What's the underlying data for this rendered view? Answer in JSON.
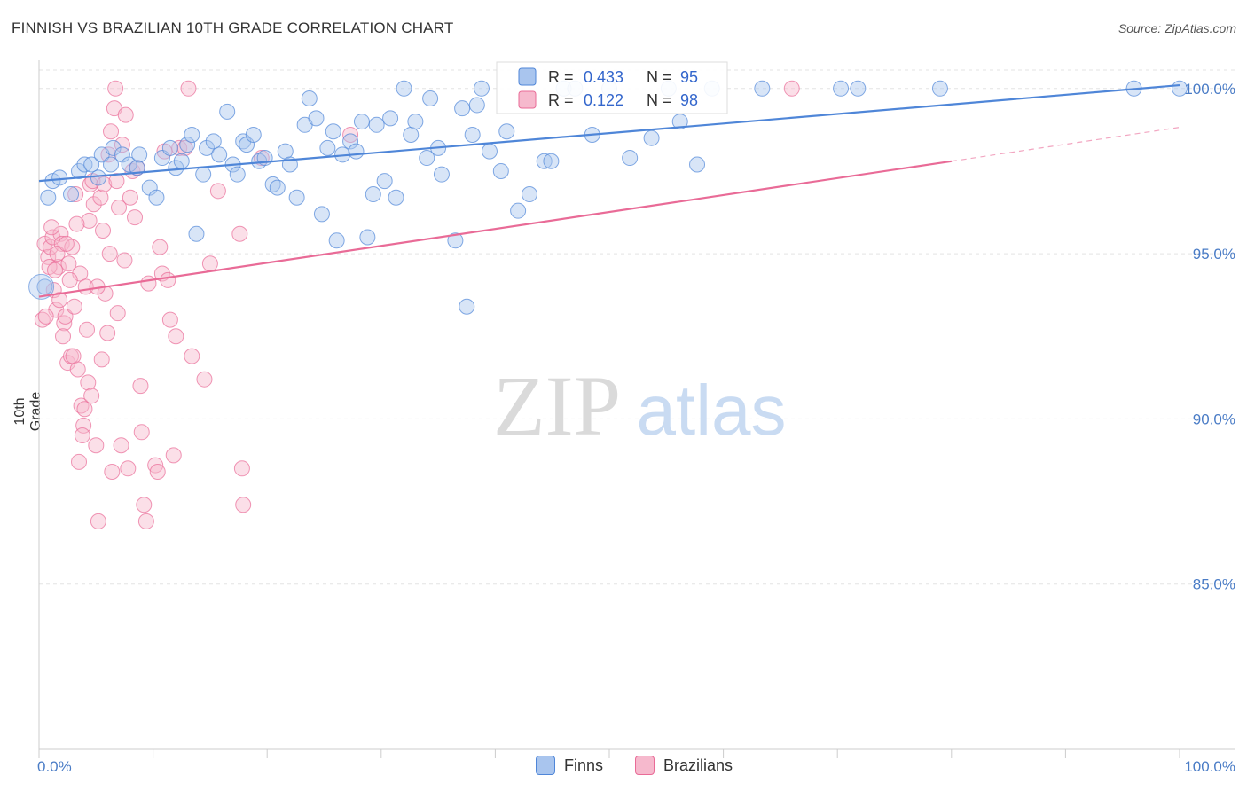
{
  "chart_data": {
    "type": "scatter",
    "title": "FINNISH VS BRAZILIAN 10TH GRADE CORRELATION CHART",
    "source": "Source: ZipAtlas.com",
    "ylabel": "10th Grade",
    "xlabel": "",
    "xlim": [
      0,
      100
    ],
    "ylim": [
      80.0,
      100.8
    ],
    "x_tick_labels": [
      "0.0%",
      "100.0%"
    ],
    "y_ticks": [
      85.0,
      90.0,
      95.0,
      100.0
    ],
    "y_tick_labels": [
      "85.0%",
      "90.0%",
      "95.0%",
      "100.0%"
    ],
    "watermark": {
      "part1": "ZIP",
      "part2": "atlas"
    },
    "legend": [
      {
        "name": "Finns",
        "r_label": "R =",
        "r_value": "0.433",
        "n_label": "N =",
        "n_value": "95"
      },
      {
        "name": "Brazilians",
        "r_label": "R =",
        "r_value": "0.122",
        "n_label": "N =",
        "n_value": "98"
      }
    ],
    "series": [
      {
        "name": "Finns",
        "color": "#4f86d8",
        "fill": "#a9c5ee",
        "trend": {
          "x1": 0,
          "y1": 97.2,
          "x2": 100,
          "y2": 100.1,
          "dashed_to": 100
        },
        "points": [
          [
            0.5,
            94.0
          ],
          [
            0.8,
            96.7
          ],
          [
            1.2,
            97.2
          ],
          [
            1.8,
            97.3
          ],
          [
            2.8,
            96.8
          ],
          [
            3.5,
            97.5
          ],
          [
            4.0,
            97.7
          ],
          [
            4.6,
            97.7
          ],
          [
            5.2,
            97.3
          ],
          [
            5.5,
            98.0
          ],
          [
            6.3,
            97.7
          ],
          [
            6.5,
            98.2
          ],
          [
            7.3,
            98.0
          ],
          [
            7.9,
            97.7
          ],
          [
            8.6,
            97.6
          ],
          [
            8.8,
            98.0
          ],
          [
            9.7,
            97.0
          ],
          [
            10.3,
            96.7
          ],
          [
            10.8,
            97.9
          ],
          [
            11.5,
            98.2
          ],
          [
            12.0,
            97.6
          ],
          [
            12.5,
            97.8
          ],
          [
            13.0,
            98.3
          ],
          [
            13.4,
            98.6
          ],
          [
            13.8,
            95.6
          ],
          [
            14.4,
            97.4
          ],
          [
            14.7,
            98.2
          ],
          [
            15.3,
            98.4
          ],
          [
            15.8,
            98.0
          ],
          [
            16.5,
            99.3
          ],
          [
            17.0,
            97.7
          ],
          [
            17.4,
            97.4
          ],
          [
            17.9,
            98.4
          ],
          [
            18.2,
            98.3
          ],
          [
            18.8,
            98.6
          ],
          [
            19.3,
            97.8
          ],
          [
            19.8,
            97.9
          ],
          [
            20.5,
            97.1
          ],
          [
            20.9,
            97.0
          ],
          [
            21.6,
            98.1
          ],
          [
            22.0,
            97.7
          ],
          [
            22.6,
            96.7
          ],
          [
            23.3,
            98.9
          ],
          [
            23.7,
            99.7
          ],
          [
            24.3,
            99.1
          ],
          [
            24.8,
            96.2
          ],
          [
            25.3,
            98.2
          ],
          [
            25.8,
            98.7
          ],
          [
            26.1,
            95.4
          ],
          [
            26.6,
            98.0
          ],
          [
            27.3,
            98.4
          ],
          [
            27.8,
            98.1
          ],
          [
            28.3,
            99.0
          ],
          [
            28.8,
            95.5
          ],
          [
            29.3,
            96.8
          ],
          [
            29.6,
            98.9
          ],
          [
            30.3,
            97.2
          ],
          [
            30.8,
            99.1
          ],
          [
            31.3,
            96.7
          ],
          [
            32.0,
            100.0
          ],
          [
            32.6,
            98.6
          ],
          [
            33.0,
            99.0
          ],
          [
            34.0,
            97.9
          ],
          [
            34.3,
            99.7
          ],
          [
            35.0,
            98.2
          ],
          [
            35.3,
            97.4
          ],
          [
            36.5,
            95.4
          ],
          [
            37.1,
            99.4
          ],
          [
            37.5,
            93.4
          ],
          [
            38.0,
            98.6
          ],
          [
            38.4,
            99.5
          ],
          [
            38.8,
            100.0
          ],
          [
            39.5,
            98.1
          ],
          [
            40.5,
            97.5
          ],
          [
            41.0,
            98.7
          ],
          [
            42.0,
            96.3
          ],
          [
            43.0,
            96.8
          ],
          [
            44.3,
            97.8
          ],
          [
            44.9,
            97.8
          ],
          [
            46.0,
            100.0
          ],
          [
            47.0,
            100.0
          ],
          [
            48.5,
            98.6
          ],
          [
            50.0,
            100.0
          ],
          [
            51.8,
            97.9
          ],
          [
            53.7,
            98.5
          ],
          [
            55.2,
            100.0
          ],
          [
            56.2,
            99.0
          ],
          [
            57.7,
            97.7
          ],
          [
            59.0,
            100.0
          ],
          [
            63.4,
            100.0
          ],
          [
            70.3,
            100.0
          ],
          [
            79.0,
            100.0
          ],
          [
            96.0,
            100.0
          ],
          [
            100.0,
            100.0
          ],
          [
            71.8,
            100.0
          ]
        ]
      },
      {
        "name": "Brazilians",
        "color": "#e96b97",
        "fill": "#f6b9cd",
        "trend": {
          "x1": 0,
          "y1": 93.7,
          "x2": 80,
          "y2": 97.8,
          "dashed_to": 100
        },
        "points": [
          [
            0.3,
            93.0
          ],
          [
            0.5,
            95.3
          ],
          [
            0.8,
            94.9
          ],
          [
            1.0,
            95.2
          ],
          [
            1.2,
            95.5
          ],
          [
            1.3,
            93.9
          ],
          [
            1.5,
            93.3
          ],
          [
            1.7,
            94.6
          ],
          [
            1.9,
            95.6
          ],
          [
            2.0,
            95.3
          ],
          [
            2.2,
            92.9
          ],
          [
            2.3,
            93.1
          ],
          [
            2.5,
            91.7
          ],
          [
            2.6,
            94.7
          ],
          [
            2.8,
            91.9
          ],
          [
            2.9,
            95.2
          ],
          [
            3.0,
            91.9
          ],
          [
            3.2,
            96.8
          ],
          [
            3.4,
            91.5
          ],
          [
            3.5,
            88.7
          ],
          [
            3.6,
            94.4
          ],
          [
            3.7,
            90.4
          ],
          [
            3.9,
            89.8
          ],
          [
            4.0,
            90.3
          ],
          [
            4.1,
            94.0
          ],
          [
            4.2,
            92.7
          ],
          [
            4.4,
            96.0
          ],
          [
            4.5,
            97.1
          ],
          [
            4.7,
            97.2
          ],
          [
            4.8,
            96.5
          ],
          [
            5.0,
            89.2
          ],
          [
            5.2,
            86.9
          ],
          [
            5.4,
            96.7
          ],
          [
            5.5,
            91.8
          ],
          [
            5.7,
            97.1
          ],
          [
            5.8,
            93.8
          ],
          [
            6.0,
            92.6
          ],
          [
            6.2,
            95.0
          ],
          [
            6.3,
            98.7
          ],
          [
            6.4,
            88.4
          ],
          [
            6.6,
            99.4
          ],
          [
            6.7,
            100.0
          ],
          [
            6.8,
            97.2
          ],
          [
            7.0,
            96.4
          ],
          [
            7.2,
            89.2
          ],
          [
            7.3,
            98.3
          ],
          [
            7.5,
            94.8
          ],
          [
            7.6,
            99.2
          ],
          [
            7.8,
            88.5
          ],
          [
            8.0,
            96.7
          ],
          [
            8.2,
            97.5
          ],
          [
            8.4,
            96.1
          ],
          [
            8.6,
            97.6
          ],
          [
            8.9,
            91.0
          ],
          [
            9.0,
            89.6
          ],
          [
            9.2,
            87.4
          ],
          [
            9.4,
            86.9
          ],
          [
            9.6,
            94.1
          ],
          [
            10.2,
            88.6
          ],
          [
            10.4,
            88.4
          ],
          [
            10.6,
            95.2
          ],
          [
            10.8,
            94.4
          ],
          [
            11.0,
            98.1
          ],
          [
            11.3,
            94.2
          ],
          [
            11.5,
            93.0
          ],
          [
            11.8,
            88.9
          ],
          [
            12.0,
            92.5
          ],
          [
            12.3,
            98.2
          ],
          [
            12.8,
            98.2
          ],
          [
            13.1,
            100.0
          ],
          [
            13.4,
            91.9
          ],
          [
            14.5,
            91.2
          ],
          [
            15.0,
            94.7
          ],
          [
            15.7,
            96.9
          ],
          [
            17.6,
            95.6
          ],
          [
            17.8,
            88.5
          ],
          [
            17.9,
            87.4
          ],
          [
            19.5,
            97.9
          ],
          [
            27.3,
            98.6
          ],
          [
            66.0,
            100.0
          ],
          [
            0.6,
            93.1
          ],
          [
            0.9,
            94.6
          ],
          [
            1.1,
            95.8
          ],
          [
            1.4,
            94.5
          ],
          [
            1.6,
            95.0
          ],
          [
            1.8,
            93.6
          ],
          [
            2.1,
            92.5
          ],
          [
            2.4,
            95.3
          ],
          [
            2.7,
            94.2
          ],
          [
            3.1,
            93.4
          ],
          [
            3.3,
            95.9
          ],
          [
            3.8,
            89.5
          ],
          [
            4.3,
            91.1
          ],
          [
            4.6,
            90.7
          ],
          [
            5.1,
            94.0
          ],
          [
            5.6,
            95.7
          ],
          [
            6.1,
            98.0
          ],
          [
            6.9,
            93.2
          ]
        ]
      }
    ]
  }
}
